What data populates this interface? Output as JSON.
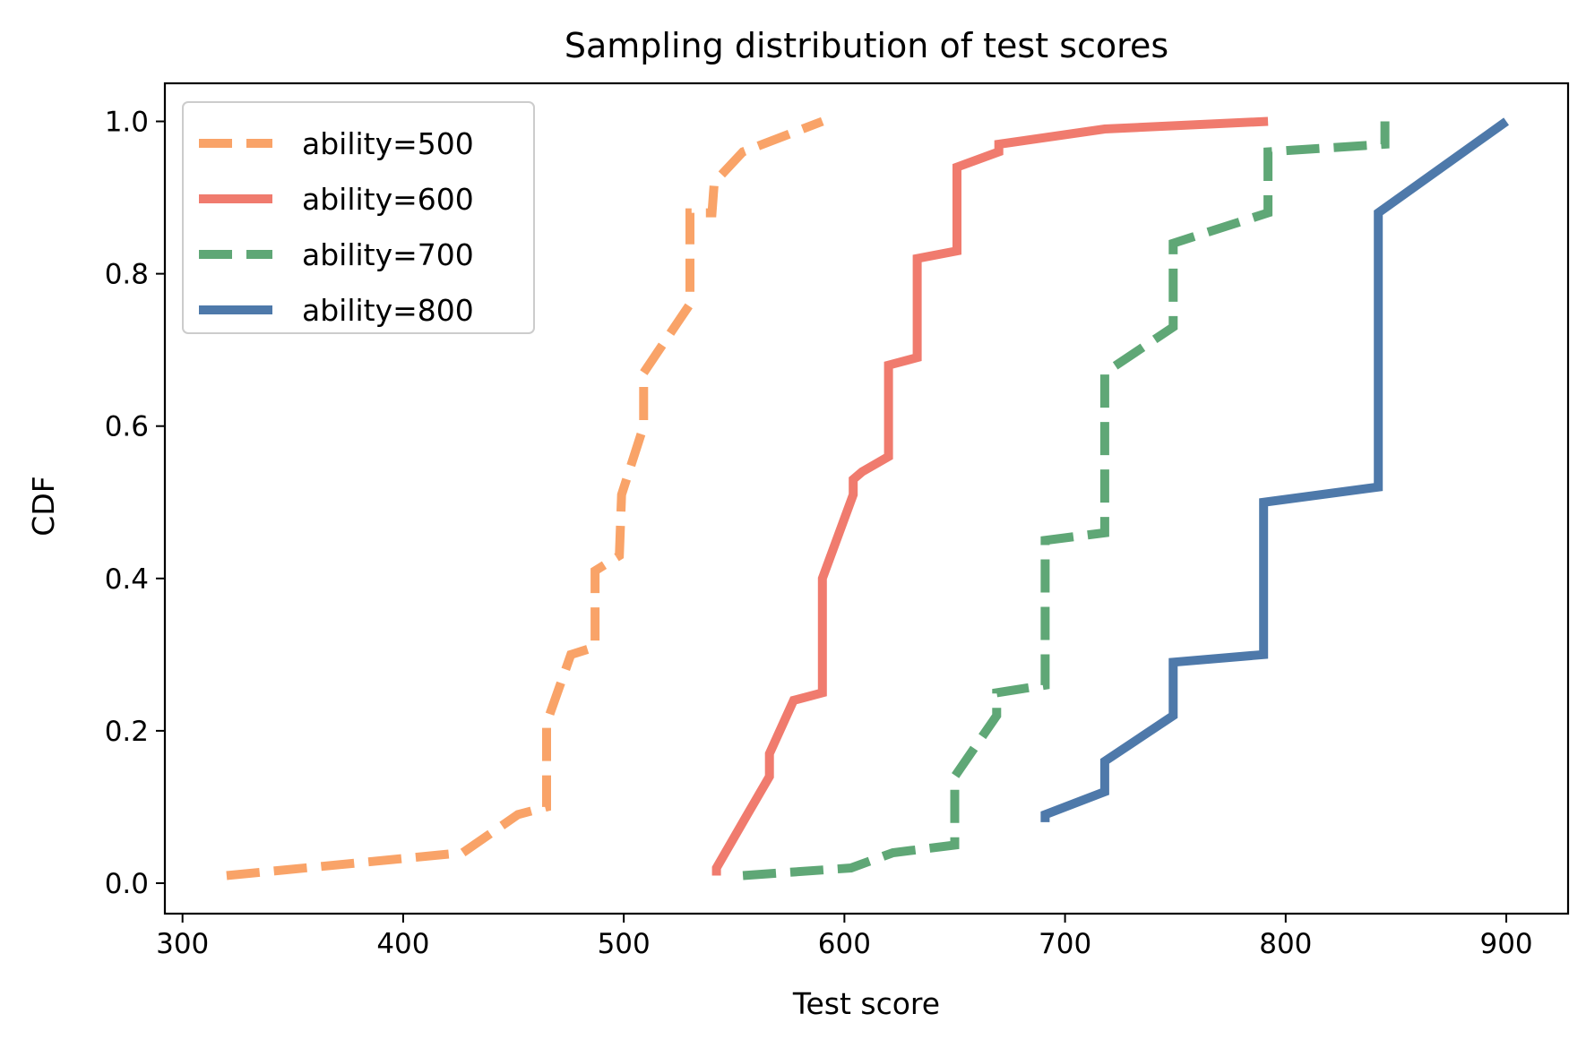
{
  "chart_data": {
    "type": "line",
    "title": "Sampling distribution of test scores",
    "xlabel": "Test score",
    "ylabel": "CDF",
    "xlim": [
      292,
      928
    ],
    "ylim": [
      -0.04,
      1.05
    ],
    "xticks": [
      300,
      400,
      500,
      600,
      700,
      800,
      900
    ],
    "xtick_labels": [
      "300",
      "400",
      "500",
      "600",
      "700",
      "800",
      "900"
    ],
    "yticks": [
      0.0,
      0.2,
      0.4,
      0.6,
      0.8,
      1.0
    ],
    "ytick_labels": [
      "0.0",
      "0.2",
      "0.4",
      "0.6",
      "0.8",
      "1.0"
    ],
    "grid": false,
    "legend_position": "top-left",
    "series": [
      {
        "name": "ability=500",
        "color": "#F9A368",
        "style": "dashed",
        "x": [
          320,
          427,
          452,
          465,
          465,
          476,
          487,
          487,
          498,
          499,
          509,
          509,
          530,
          530,
          540,
          541,
          554,
          590
        ],
        "y": [
          0.01,
          0.04,
          0.09,
          0.1,
          0.21,
          0.3,
          0.31,
          0.41,
          0.43,
          0.51,
          0.6,
          0.67,
          0.76,
          0.88,
          0.88,
          0.92,
          0.96,
          1.0
        ]
      },
      {
        "name": "ability=600",
        "color": "#F07B6E",
        "style": "solid",
        "x": [
          542,
          542,
          556,
          566,
          566,
          577,
          590,
          590,
          604,
          604,
          608,
          620,
          620,
          633,
          633,
          651,
          651,
          670,
          670,
          718,
          792
        ],
        "y": [
          0.01,
          0.02,
          0.09,
          0.14,
          0.17,
          0.24,
          0.25,
          0.4,
          0.51,
          0.53,
          0.54,
          0.56,
          0.68,
          0.69,
          0.82,
          0.83,
          0.94,
          0.96,
          0.97,
          0.99,
          1.0
        ]
      },
      {
        "name": "ability=700",
        "color": "#5FA776",
        "style": "dashed",
        "x": [
          554,
          603,
          622,
          650,
          650,
          669,
          669,
          691,
          691,
          718,
          718,
          749,
          749,
          792,
          792,
          845,
          845
        ],
        "y": [
          0.01,
          0.02,
          0.04,
          0.05,
          0.14,
          0.22,
          0.25,
          0.26,
          0.45,
          0.46,
          0.67,
          0.73,
          0.84,
          0.88,
          0.96,
          0.97,
          1.0
        ]
      },
      {
        "name": "ability=800",
        "color": "#4E79AA",
        "style": "solid",
        "x": [
          691,
          691,
          718,
          718,
          749,
          749,
          790,
          790,
          842,
          842,
          900
        ],
        "y": [
          0.08,
          0.09,
          0.12,
          0.16,
          0.22,
          0.29,
          0.3,
          0.5,
          0.52,
          0.88,
          1.0
        ]
      }
    ]
  }
}
